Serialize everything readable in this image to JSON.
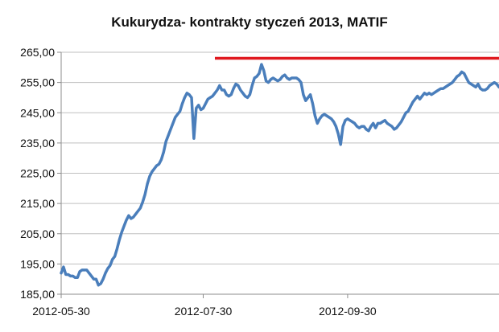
{
  "chart_data": {
    "type": "line",
    "title": "Kukurydza- kontrakty styczeń 2013, MATIF",
    "xlabel": "",
    "ylabel": "",
    "ylim": [
      185,
      265
    ],
    "yticks": [
      "185,00",
      "195,00",
      "205,00",
      "215,00",
      "225,00",
      "235,00",
      "245,00",
      "255,00",
      "265,00"
    ],
    "yticks_values": [
      185,
      195,
      205,
      215,
      225,
      235,
      245,
      255,
      265
    ],
    "xticks": [
      "2012-05-30",
      "2012-07-30",
      "2012-09-30"
    ],
    "xticks_index": [
      0,
      61,
      123
    ],
    "grid": "horizontal",
    "legend": "none",
    "colors": {
      "series": "#4a7ebb",
      "reference": "#e0191f",
      "grid": "#bfbfbf",
      "axis": "#8c8c8c"
    },
    "series": [
      {
        "values": [
          192,
          194,
          191.5,
          191.5,
          191,
          191,
          190.5,
          190.5,
          192.5,
          193,
          193,
          193,
          192,
          191,
          190,
          190,
          188,
          188.5,
          190,
          192,
          193.5,
          194.5,
          196.5,
          197.5,
          200,
          203,
          205.5,
          207.5,
          209.5,
          211,
          210,
          210.5,
          211.5,
          212.5,
          213.5,
          215.5,
          218,
          221.5,
          224,
          225.5,
          226.5,
          227.5,
          228,
          229.5,
          232,
          235.5,
          237.5,
          239.5,
          241.5,
          243.5,
          244.5,
          245.5,
          248,
          250,
          251.5,
          251,
          250,
          236.5,
          246.5,
          247.5,
          246,
          246.5,
          248,
          249.5,
          250,
          250.5,
          251.5,
          252.5,
          254,
          252.5,
          252.5,
          251,
          250.5,
          251,
          253,
          254.5,
          254,
          252.5,
          251.5,
          250.5,
          250,
          251,
          254,
          256.5,
          257,
          258,
          261,
          259,
          255.5,
          255,
          256,
          256.5,
          256,
          255.5,
          256,
          257,
          257.5,
          256.5,
          256,
          256.5,
          256.5,
          256.5,
          256,
          255,
          251,
          249,
          250,
          251,
          248,
          244,
          241.5,
          243,
          244,
          244.5,
          244,
          243.5,
          243,
          242,
          240.5,
          238,
          234.5,
          240.5,
          242.5,
          243,
          242.5,
          242,
          241.5,
          240.5,
          240,
          240.5,
          240.5,
          239.5,
          239,
          240.5,
          241.5,
          240,
          241.5,
          241.5,
          242,
          242.5,
          241.5,
          241,
          240.5,
          239.5,
          240,
          241,
          242,
          243.5,
          245,
          245.5,
          247,
          248.5,
          249.5,
          250.5,
          249.5,
          250.5,
          251.5,
          251,
          251.5,
          251,
          251.5,
          252,
          252.5,
          253,
          253,
          253.5,
          254,
          254.5,
          255,
          256,
          257,
          257.5,
          258.5,
          258,
          256.5,
          255,
          254.5,
          254,
          253.5,
          254.5,
          253,
          252.5,
          252.5,
          253,
          254,
          254.5,
          255,
          254.5,
          253.5
        ]
      },
      {
        "values": [
          263,
          263
        ]
      }
    ]
  }
}
